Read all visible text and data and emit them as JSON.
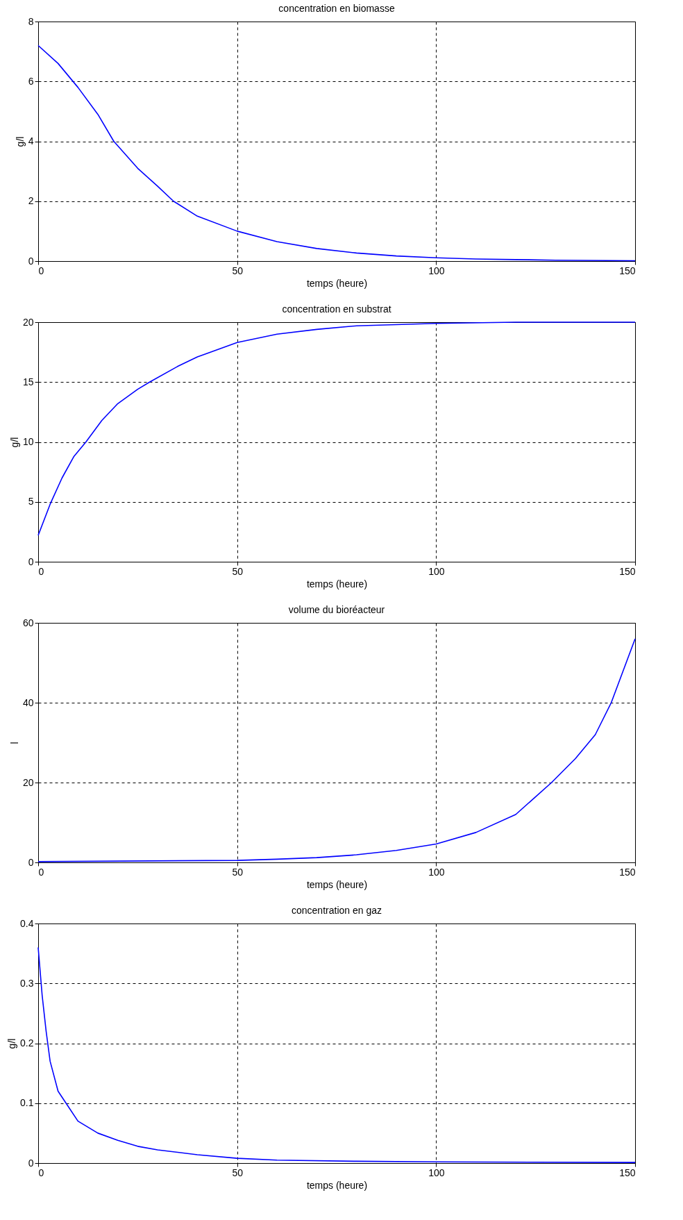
{
  "chart_data": [
    {
      "type": "line",
      "title": "concentration en biomasse",
      "xlabel": "temps (heure)",
      "ylabel": "g/l",
      "xlim": [
        0,
        150
      ],
      "xticks": [
        0,
        50,
        100,
        150
      ],
      "ylim": [
        0,
        8
      ],
      "yticks": [
        0,
        2,
        4,
        6,
        8
      ],
      "grid": true,
      "x": [
        0,
        5,
        10,
        15,
        19,
        25,
        30,
        34,
        40,
        50,
        60,
        70,
        80,
        90,
        100,
        110,
        120,
        130,
        150
      ],
      "series": [
        {
          "color": "#0000ff",
          "values": [
            7.2,
            6.6,
            5.8,
            4.9,
            4.0,
            3.1,
            2.5,
            2.0,
            1.5,
            1.0,
            0.65,
            0.42,
            0.27,
            0.17,
            0.11,
            0.07,
            0.05,
            0.03,
            0.01
          ]
        }
      ]
    },
    {
      "type": "line",
      "title": "concentration en  substrat",
      "xlabel": "temps (heure)",
      "ylabel": "g/l",
      "xlim": [
        0,
        150
      ],
      "xticks": [
        0,
        50,
        100,
        150
      ],
      "ylim": [
        0,
        20
      ],
      "yticks": [
        0,
        5,
        10,
        15,
        20
      ],
      "grid": true,
      "x": [
        0,
        3,
        6,
        9,
        12,
        16,
        20,
        25,
        28,
        35,
        40,
        50,
        60,
        70,
        80,
        100,
        120,
        150
      ],
      "series": [
        {
          "color": "#0000ff",
          "values": [
            2.2,
            4.8,
            7.0,
            8.8,
            10.0,
            11.8,
            13.2,
            14.4,
            15.0,
            16.3,
            17.1,
            18.3,
            19.0,
            19.4,
            19.7,
            19.9,
            20.0,
            20.0
          ]
        }
      ]
    },
    {
      "type": "line",
      "title": "volume du bioréacteur",
      "xlabel": "temps (heure)",
      "ylabel": "l",
      "xlim": [
        0,
        150
      ],
      "xticks": [
        0,
        50,
        100,
        150
      ],
      "ylim": [
        0,
        60
      ],
      "yticks": [
        0,
        20,
        40,
        60
      ],
      "grid": true,
      "x": [
        0,
        50,
        60,
        70,
        80,
        90,
        100,
        110,
        120,
        129,
        135,
        140,
        144,
        147,
        150
      ],
      "series": [
        {
          "color": "#0000ff",
          "values": [
            0.2,
            0.5,
            0.8,
            1.2,
            1.9,
            3.0,
            4.6,
            7.5,
            12,
            20,
            26,
            32,
            40,
            48,
            56
          ]
        }
      ]
    },
    {
      "type": "line",
      "title": "concentration en gaz",
      "xlabel": "temps (heure)",
      "ylabel": "g/l",
      "xlim": [
        0,
        150
      ],
      "xticks": [
        0,
        50,
        100,
        150
      ],
      "ylim": [
        0,
        0.4
      ],
      "yticks": [
        0,
        0.1,
        0.2,
        0.3,
        0.4
      ],
      "grid": true,
      "x": [
        0,
        0.5,
        1,
        2,
        3,
        5,
        7,
        10,
        15,
        20,
        25,
        30,
        40,
        50,
        60,
        80,
        100,
        150
      ],
      "series": [
        {
          "color": "#0000ff",
          "values": [
            0.36,
            0.32,
            0.28,
            0.22,
            0.17,
            0.12,
            0.1,
            0.07,
            0.05,
            0.038,
            0.028,
            0.022,
            0.014,
            0.008,
            0.005,
            0.003,
            0.002,
            0.001
          ]
        }
      ]
    }
  ]
}
